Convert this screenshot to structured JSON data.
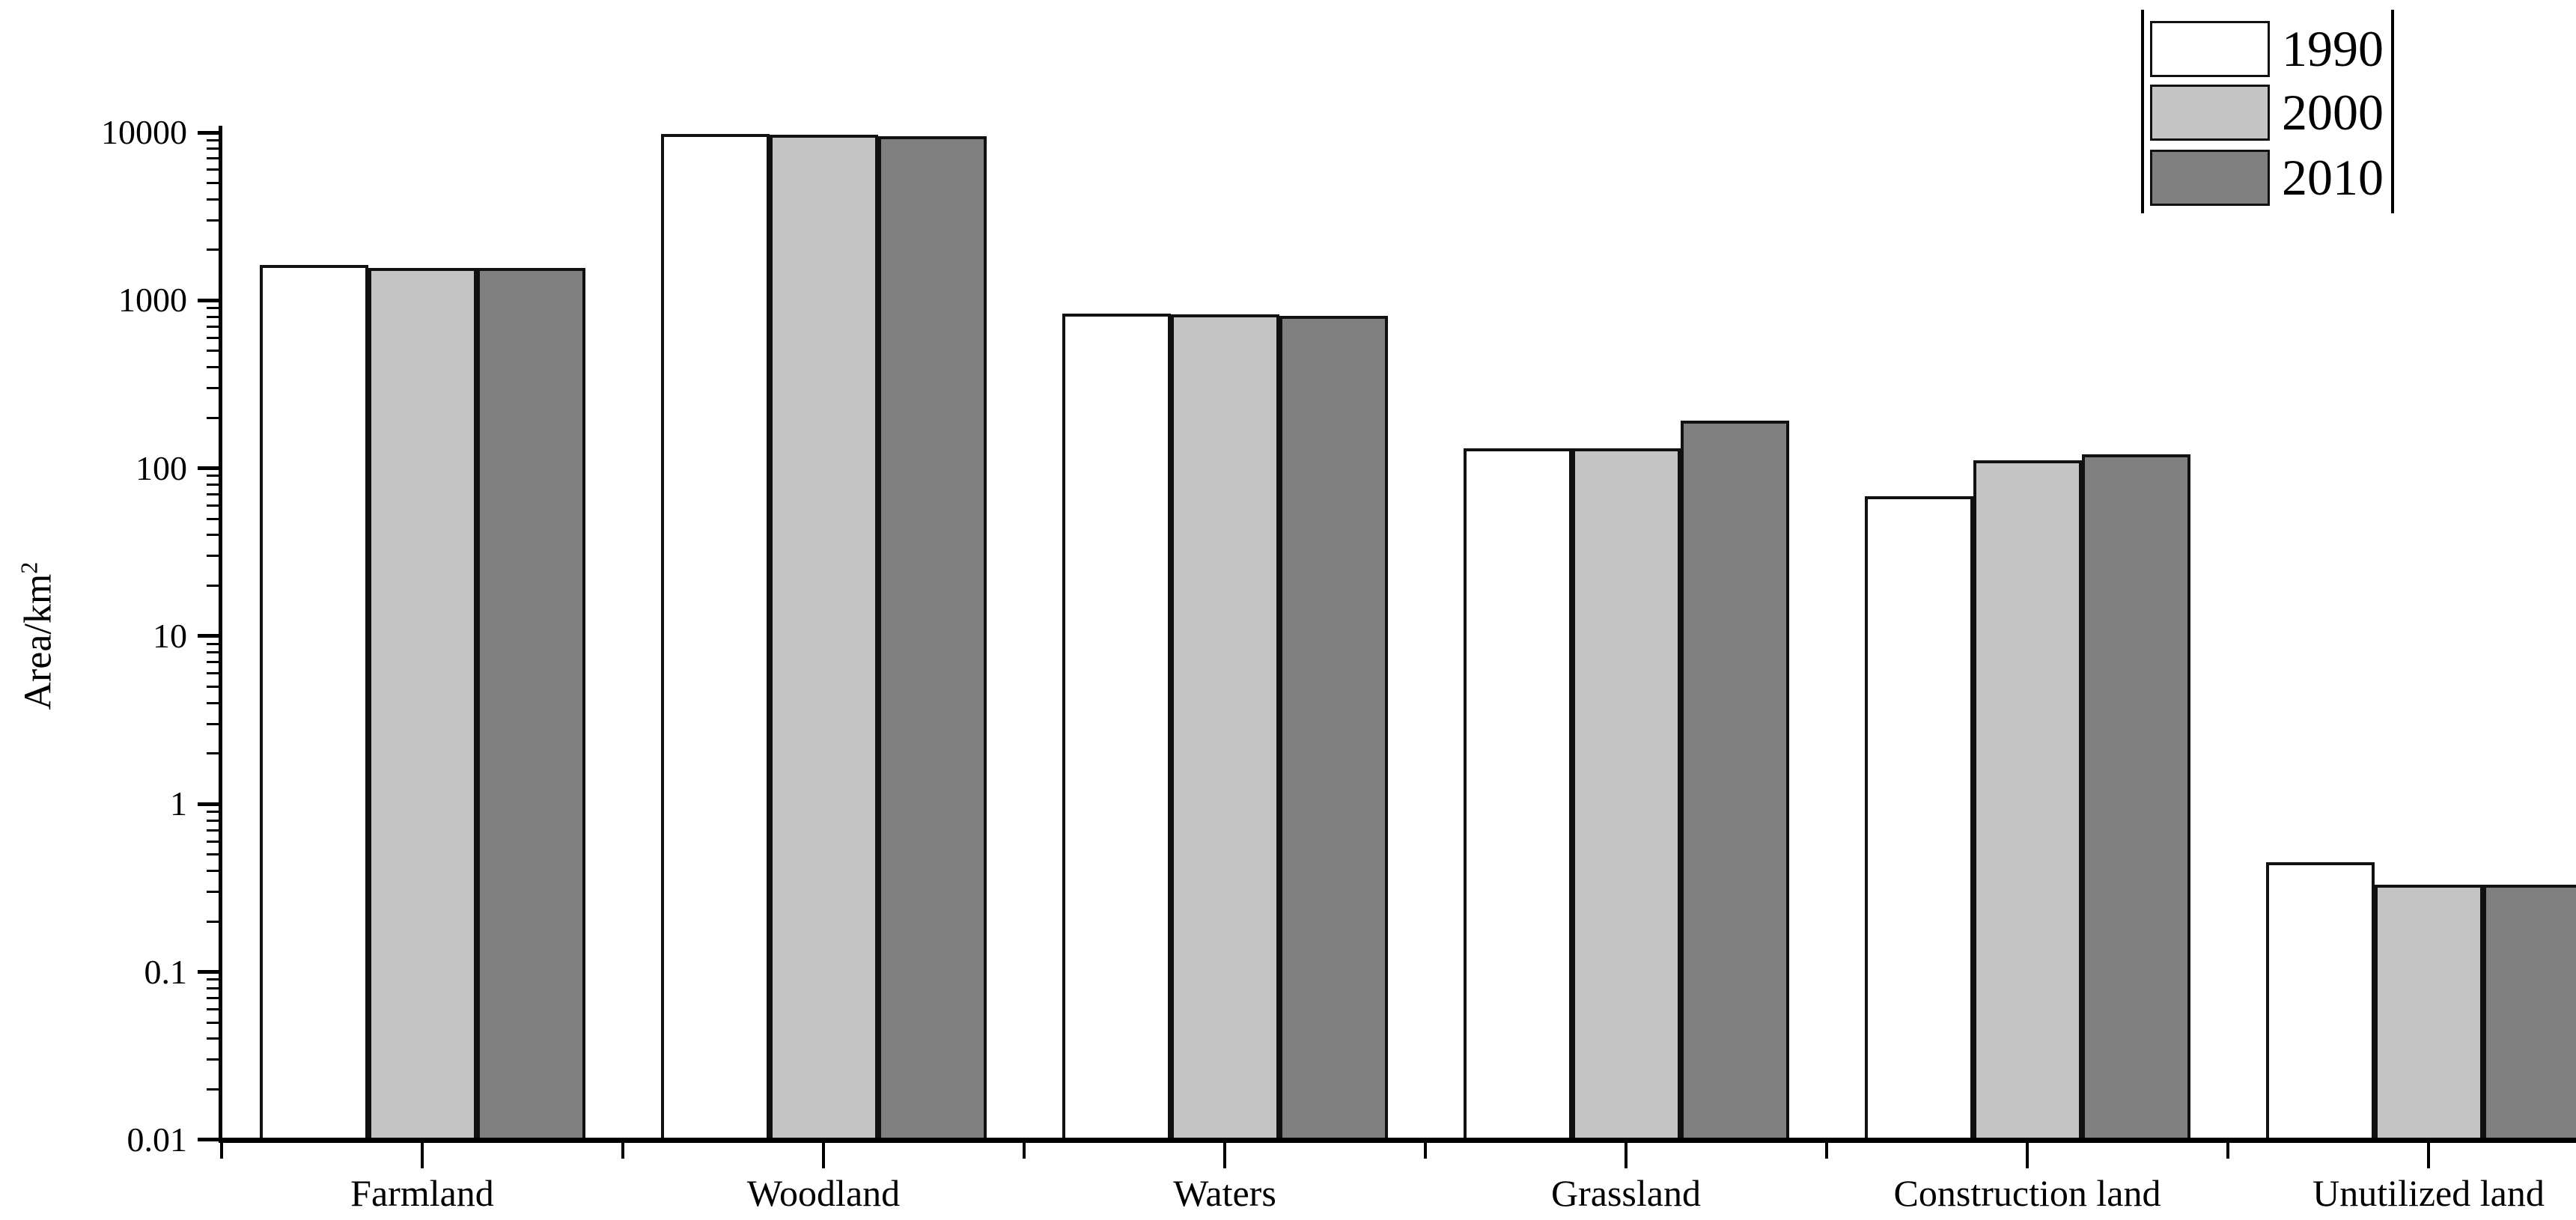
{
  "page": {
    "background": "#ffffff"
  },
  "chart_data": {
    "type": "bar",
    "title": "",
    "ylabel": "Area/km",
    "ylabel_superscript": "2",
    "xlabel": "",
    "yscale": "log",
    "ylim": [
      0.01,
      10000
    ],
    "grid": false,
    "legend_position": "top-right",
    "categories": [
      "Farmland",
      "Woodland",
      "Waters",
      "Grassland",
      "Construction land",
      "Unutilized land"
    ],
    "series": [
      {
        "name": "1990",
        "color": "#ffffff",
        "values": [
          1620,
          9800,
          830,
          131,
          68,
          0.45
        ]
      },
      {
        "name": "2000",
        "color": "#c4c4c4",
        "values": [
          1560,
          9700,
          825,
          131,
          111,
          0.33
        ]
      },
      {
        "name": "2010",
        "color": "#808080",
        "values": [
          1560,
          9500,
          812,
          192,
          121,
          0.33
        ]
      }
    ],
    "y_ticks": [
      {
        "label": "10000",
        "value": 10000
      },
      {
        "label": "1000",
        "value": 1000
      },
      {
        "label": "100",
        "value": 100
      },
      {
        "label": "10",
        "value": 10
      },
      {
        "label": "1",
        "value": 1
      },
      {
        "label": "0.1",
        "value": 0.1
      },
      {
        "label": "0.01",
        "value": 0.01
      }
    ],
    "colors": {
      "axis": "#000000",
      "bar_border": "#111111",
      "text": "#000000"
    }
  }
}
